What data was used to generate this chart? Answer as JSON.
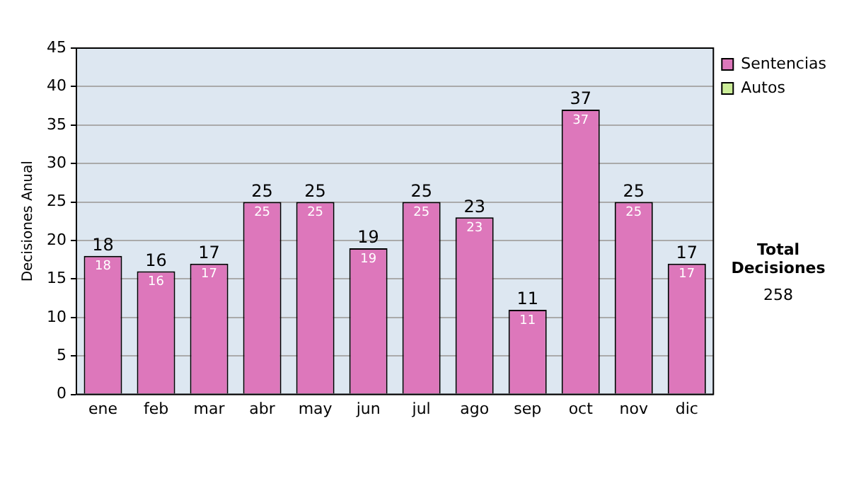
{
  "chart_data": {
    "type": "bar",
    "stacked": true,
    "ylabel": "Decisiones Anual",
    "categories": [
      "ene",
      "feb",
      "mar",
      "abr",
      "may",
      "jun",
      "jul",
      "ago",
      "sep",
      "oct",
      "nov",
      "dic"
    ],
    "series": [
      {
        "name": "Sentencias",
        "color": "#dd77bb",
        "values": [
          18,
          16,
          17,
          25,
          25,
          19,
          25,
          23,
          11,
          37,
          25,
          17
        ],
        "value_labels": [
          "18",
          "16",
          "17",
          "25",
          "25",
          "19",
          "25",
          "23",
          "11",
          "37",
          "25",
          "17"
        ]
      },
      {
        "name": "Autos",
        "color": "#ccee99",
        "values": [
          0,
          0,
          0,
          0,
          0,
          0,
          0,
          0,
          0,
          0,
          0,
          0
        ]
      }
    ],
    "totals": [
      "18",
      "16",
      "17",
      "25",
      "25",
      "19",
      "25",
      "23",
      "11",
      "37",
      "25",
      "17"
    ],
    "ylim": [
      0,
      45
    ],
    "yticks": [
      0,
      5,
      10,
      15,
      20,
      25,
      30,
      35,
      40,
      45
    ],
    "grid": "y",
    "legend": "right",
    "annotations": [
      "Total Decisiones",
      "258"
    ]
  }
}
